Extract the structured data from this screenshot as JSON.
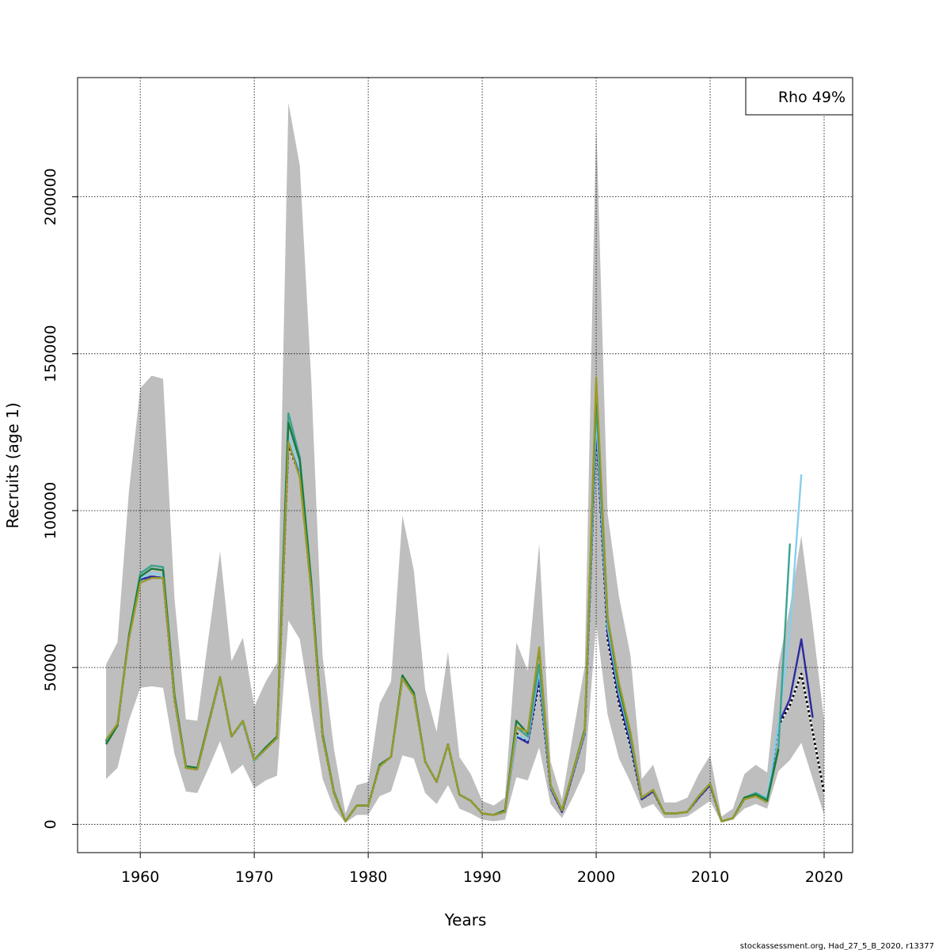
{
  "chart_data": {
    "type": "line",
    "title": "",
    "xlabel": "Years",
    "ylabel": "Recruits (age 1)",
    "xlim": [
      1954.5,
      2022.5
    ],
    "ylim": [
      -9000,
      238000
    ],
    "xticks": [
      1960,
      1970,
      1980,
      1990,
      2000,
      2010,
      2020
    ],
    "yticks": [
      0,
      50000,
      100000,
      150000,
      200000
    ],
    "xtick_labels": [
      "1960",
      "1970",
      "1980",
      "1990",
      "2000",
      "2010",
      "2020"
    ],
    "ytick_labels": [
      "0",
      "50000",
      "100000",
      "150000",
      "200000"
    ],
    "grid": true,
    "legend_position": "top-right",
    "legend_text": "Rho 49%",
    "footer": "stockassessment.org, Had_27_5_B_2020, r13377",
    "colors": {
      "band": "#bebebe",
      "grid": "#000000"
    },
    "confidence_band": {
      "x": [
        1957,
        1958,
        1959,
        1960,
        1961,
        1962,
        1963,
        1964,
        1965,
        1966,
        1967,
        1968,
        1969,
        1970,
        1971,
        1972,
        1973,
        1974,
        1975,
        1976,
        1977,
        1978,
        1979,
        1980,
        1981,
        1982,
        1983,
        1984,
        1985,
        1986,
        1987,
        1988,
        1989,
        1990,
        1991,
        1992,
        1993,
        1994,
        1995,
        1996,
        1997,
        1998,
        1999,
        2000,
        2001,
        2002,
        2003,
        2004,
        2005,
        2006,
        2007,
        2008,
        2009,
        2010,
        2011,
        2012,
        2013,
        2014,
        2015,
        2016,
        2017,
        2018,
        2019,
        2020
      ],
      "upper": [
        51000,
        58000,
        106000,
        139000,
        143000,
        142000,
        72000,
        33500,
        33000,
        60000,
        87000,
        52000,
        59500,
        37500,
        45500,
        51500,
        230000,
        210000,
        142000,
        53500,
        24000,
        3500,
        12500,
        13500,
        38500,
        45500,
        98500,
        81000,
        43000,
        29500,
        55000,
        21500,
        16000,
        7500,
        6000,
        8500,
        58000,
        49000,
        89500,
        20000,
        8000,
        29500,
        50500,
        224000,
        99000,
        72500,
        54000,
        14500,
        19000,
        7000,
        7000,
        8500,
        16000,
        22000,
        2500,
        5000,
        16000,
        19000,
        16500,
        51000,
        69500,
        92000,
        63500,
        33000
      ],
      "lower": [
        14500,
        18000,
        33000,
        43500,
        44000,
        43500,
        22500,
        10500,
        10000,
        18000,
        26500,
        16000,
        19000,
        11500,
        14000,
        15500,
        65000,
        59000,
        36500,
        14500,
        5000,
        500,
        3000,
        3000,
        9000,
        10500,
        22000,
        21000,
        10000,
        6500,
        12500,
        5000,
        3500,
        1500,
        1000,
        1500,
        15000,
        14000,
        24500,
        6500,
        2000,
        9000,
        17000,
        64000,
        35000,
        21000,
        13500,
        5000,
        6500,
        2000,
        2000,
        2500,
        5000,
        7500,
        500,
        1500,
        5000,
        6500,
        5000,
        17000,
        20500,
        26000,
        14500,
        3000
      ]
    },
    "series": [
      {
        "name": "",
        "color": "#000000",
        "dashed": true,
        "x": [
          1957,
          1958,
          1959,
          1960,
          1961,
          1962,
          1963,
          1964,
          1965,
          1966,
          1967,
          1968,
          1969,
          1970,
          1971,
          1972,
          1973,
          1974,
          1975,
          1976,
          1977,
          1978,
          1979,
          1980,
          1981,
          1982,
          1983,
          1984,
          1985,
          1986,
          1987,
          1988,
          1989,
          1990,
          1991,
          1992,
          1993,
          1994,
          1995,
          1996,
          1997,
          1998,
          1999,
          2000,
          2001,
          2002,
          2003,
          2004,
          2005,
          2006,
          2007,
          2008,
          2009,
          2010,
          2011,
          2012,
          2013,
          2014,
          2015,
          2016,
          2017,
          2018,
          2019,
          2020
        ],
        "values": [
          26500,
          31500,
          59500,
          78000,
          79000,
          78500,
          40000,
          18000,
          17500,
          32000,
          46500,
          28000,
          32500,
          20000,
          24000,
          27500,
          121000,
          111000,
          75000,
          28000,
          10000,
          1000,
          6000,
          6000,
          18500,
          21500,
          46500,
          41000,
          20000,
          13500,
          25500,
          9500,
          7500,
          3500,
          3000,
          4000,
          29000,
          26000,
          45500,
          11500,
          4000,
          16500,
          29000,
          126000,
          59000,
          38500,
          25000,
          8000,
          10500,
          3500,
          3500,
          4000,
          8500,
          12500,
          1000,
          2000,
          8000,
          9500,
          7500,
          31500,
          38000,
          48000,
          29500,
          10000
        ]
      },
      {
        "name": "",
        "color": "#2c2aa0",
        "dashed": false,
        "x": [
          1957,
          1958,
          1959,
          1960,
          1961,
          1962,
          1963,
          1964,
          1965,
          1966,
          1967,
          1968,
          1969,
          1970,
          1971,
          1972,
          1973,
          1974,
          1975,
          1976,
          1977,
          1978,
          1979,
          1980,
          1981,
          1982,
          1983,
          1984,
          1985,
          1986,
          1987,
          1988,
          1989,
          1990,
          1991,
          1992,
          1993,
          1994,
          1995,
          1996,
          1997,
          1998,
          1999,
          2000,
          2001,
          2002,
          2003,
          2004,
          2005,
          2006,
          2007,
          2008,
          2009,
          2010,
          2011,
          2012,
          2013,
          2014,
          2015,
          2016,
          2017,
          2018,
          2019
        ],
        "values": [
          26500,
          31500,
          59500,
          78000,
          79000,
          78500,
          40000,
          18000,
          17500,
          32000,
          46500,
          28000,
          32500,
          20000,
          24000,
          27500,
          121500,
          111500,
          75000,
          28000,
          10000,
          1000,
          6000,
          6000,
          18500,
          21500,
          46500,
          41000,
          20000,
          13500,
          25500,
          9500,
          7500,
          3500,
          3000,
          4000,
          28000,
          26000,
          47000,
          11500,
          4000,
          16500,
          29000,
          127000,
          61000,
          40000,
          26000,
          8000,
          10500,
          3500,
          3500,
          4000,
          8500,
          12500,
          1000,
          2000,
          8000,
          9500,
          7500,
          32000,
          40000,
          59000,
          34000
        ]
      },
      {
        "name": "",
        "color": "#87ceeb",
        "dashed": false,
        "x": [
          1957,
          1958,
          1959,
          1960,
          1961,
          1962,
          1963,
          1964,
          1965,
          1966,
          1967,
          1968,
          1969,
          1970,
          1971,
          1972,
          1973,
          1974,
          1975,
          1976,
          1977,
          1978,
          1979,
          1980,
          1981,
          1982,
          1983,
          1984,
          1985,
          1986,
          1987,
          1988,
          1989,
          1990,
          1991,
          1992,
          1993,
          1994,
          1995,
          1996,
          1997,
          1998,
          1999,
          2000,
          2001,
          2002,
          2003,
          2004,
          2005,
          2006,
          2007,
          2008,
          2009,
          2010,
          2011,
          2012,
          2013,
          2014,
          2015,
          2016,
          2017,
          2018
        ],
        "values": [
          26000,
          31500,
          59500,
          78500,
          80000,
          79500,
          40500,
          18000,
          17500,
          32000,
          46500,
          28000,
          32500,
          20000,
          24000,
          27500,
          124000,
          113000,
          76000,
          28500,
          10000,
          1000,
          6000,
          6000,
          18500,
          21500,
          46500,
          41000,
          20000,
          13500,
          25500,
          9500,
          7500,
          3500,
          3000,
          4000,
          28500,
          27000,
          49000,
          12000,
          4500,
          17000,
          29500,
          130000,
          63000,
          42000,
          27500,
          8500,
          11000,
          3500,
          3500,
          4000,
          9000,
          13000,
          1000,
          2000,
          8500,
          10000,
          8500,
          32000,
          62000,
          111500
        ]
      },
      {
        "name": "",
        "color": "#3aa38f",
        "dashed": false,
        "x": [
          1957,
          1958,
          1959,
          1960,
          1961,
          1962,
          1963,
          1964,
          1965,
          1966,
          1967,
          1968,
          1969,
          1970,
          1971,
          1972,
          1973,
          1974,
          1975,
          1976,
          1977,
          1978,
          1979,
          1980,
          1981,
          1982,
          1983,
          1984,
          1985,
          1986,
          1987,
          1988,
          1989,
          1990,
          1991,
          1992,
          1993,
          1994,
          1995,
          1996,
          1997,
          1998,
          1999,
          2000,
          2001,
          2002,
          2003,
          2004,
          2005,
          2006,
          2007,
          2008,
          2009,
          2010,
          2011,
          2012,
          2013,
          2014,
          2015,
          2016,
          2017
        ],
        "values": [
          26000,
          32000,
          60000,
          80000,
          82500,
          82000,
          41500,
          18500,
          18000,
          32500,
          47000,
          28000,
          33000,
          20500,
          24500,
          28000,
          131000,
          117000,
          78000,
          29000,
          10500,
          1000,
          6000,
          6000,
          19000,
          21500,
          47000,
          42000,
          20000,
          13500,
          25500,
          9500,
          7500,
          3500,
          3000,
          4500,
          31000,
          28000,
          51000,
          12500,
          4500,
          17500,
          30000,
          135000,
          65000,
          43000,
          28000,
          8500,
          11000,
          3500,
          3500,
          4000,
          9000,
          13000,
          1000,
          2000,
          8500,
          10000,
          8000,
          25000,
          89500
        ]
      },
      {
        "name": "",
        "color": "#1a7a3c",
        "dashed": false,
        "x": [
          1957,
          1958,
          1959,
          1960,
          1961,
          1962,
          1963,
          1964,
          1965,
          1966,
          1967,
          1968,
          1969,
          1970,
          1971,
          1972,
          1973,
          1974,
          1975,
          1976,
          1977,
          1978,
          1979,
          1980,
          1981,
          1982,
          1983,
          1984,
          1985,
          1986,
          1987,
          1988,
          1989,
          1990,
          1991,
          1992,
          1993,
          1994,
          1995,
          1996,
          1997,
          1998,
          1999,
          2000,
          2001,
          2002,
          2003,
          2004,
          2005,
          2006,
          2007,
          2008,
          2009,
          2010,
          2011,
          2012,
          2013,
          2014,
          2015,
          2016
        ],
        "values": [
          25500,
          31500,
          60000,
          79000,
          81500,
          81000,
          41000,
          18500,
          18000,
          32500,
          47000,
          28000,
          33000,
          20500,
          24500,
          28000,
          128000,
          116000,
          77000,
          28500,
          10000,
          1000,
          6000,
          6000,
          19000,
          21500,
          47500,
          42000,
          20000,
          13500,
          25500,
          9500,
          7500,
          3500,
          3000,
          4500,
          33000,
          29000,
          56000,
          12500,
          4500,
          17500,
          30500,
          140000,
          66000,
          44000,
          29000,
          8500,
          11000,
          3500,
          3500,
          4000,
          9000,
          13000,
          1000,
          2000,
          8500,
          9500,
          7500,
          24000
        ]
      },
      {
        "name": "",
        "color": "#9a9a2a",
        "dashed": false,
        "x": [
          1957,
          1958,
          1959,
          1960,
          1961,
          1962,
          1963,
          1964,
          1965,
          1966,
          1967,
          1968,
          1969,
          1970,
          1971,
          1972,
          1973,
          1974,
          1975,
          1976,
          1977,
          1978,
          1979,
          1980,
          1981,
          1982,
          1983,
          1984,
          1985,
          1986,
          1987,
          1988,
          1989,
          1990,
          1991,
          1992,
          1993,
          1994,
          1995,
          1996,
          1997,
          1998,
          1999,
          2000,
          2001,
          2002,
          2003,
          2004,
          2005,
          2006,
          2007,
          2008,
          2009,
          2010,
          2011,
          2012,
          2013,
          2014,
          2015
        ],
        "values": [
          27000,
          32000,
          59000,
          77000,
          78500,
          78500,
          40000,
          18000,
          17500,
          32000,
          47000,
          28000,
          33000,
          20500,
          24000,
          27500,
          122000,
          110500,
          74500,
          28000,
          10000,
          1000,
          6000,
          6000,
          18500,
          21500,
          46500,
          41000,
          20000,
          13500,
          25500,
          9500,
          7500,
          3500,
          3000,
          4000,
          31000,
          29500,
          56500,
          12500,
          4500,
          17500,
          30000,
          142500,
          66000,
          45000,
          29500,
          8500,
          11000,
          3500,
          3500,
          4000,
          9000,
          13000,
          1000,
          2000,
          8000,
          9000,
          7000
        ]
      }
    ]
  }
}
